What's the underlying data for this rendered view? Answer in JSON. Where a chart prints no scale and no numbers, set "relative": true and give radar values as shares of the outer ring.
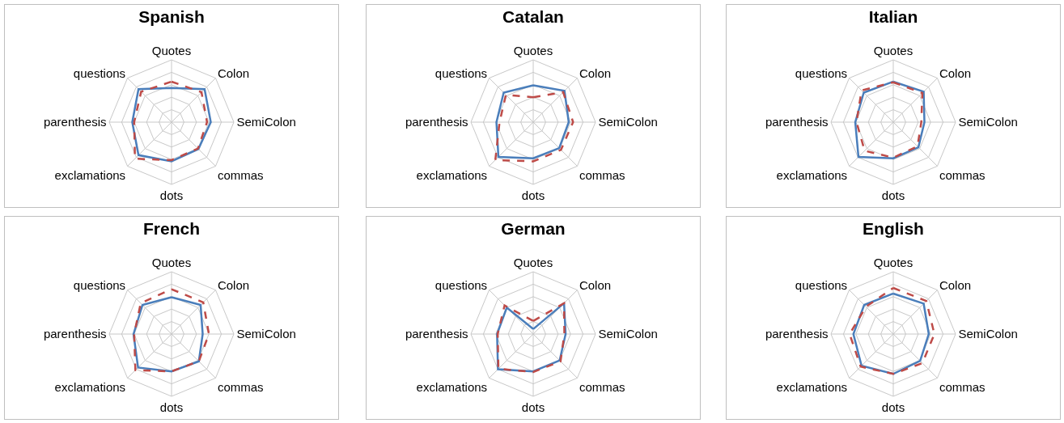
{
  "chart_data": [
    {
      "type": "radar",
      "title": "Spanish",
      "relative": true,
      "grid": true,
      "categories": [
        "Quotes",
        "Colon",
        "SemiColon",
        "commas",
        "dots",
        "exclamations",
        "parenthesis",
        "questions"
      ],
      "series": [
        {
          "color": "#4a7ebb",
          "line_style": "solid",
          "values": [
            0.55,
            0.75,
            0.63,
            0.61,
            0.63,
            0.75,
            0.63,
            0.75
          ]
        },
        {
          "color": "#be4b48",
          "line_style": "dashed",
          "values": [
            0.65,
            0.68,
            0.57,
            0.6,
            0.61,
            0.83,
            0.6,
            0.69
          ]
        }
      ]
    },
    {
      "type": "radar",
      "title": "Catalan",
      "relative": true,
      "grid": true,
      "categories": [
        "Quotes",
        "Colon",
        "SemiColon",
        "commas",
        "dots",
        "exclamations",
        "parenthesis",
        "questions"
      ],
      "series": [
        {
          "color": "#4a7ebb",
          "line_style": "solid",
          "values": [
            0.59,
            0.71,
            0.57,
            0.59,
            0.58,
            0.79,
            0.59,
            0.67
          ]
        },
        {
          "color": "#be4b48",
          "line_style": "dashed",
          "values": [
            0.4,
            0.68,
            0.64,
            0.63,
            0.63,
            0.86,
            0.54,
            0.62
          ]
        }
      ]
    },
    {
      "type": "radar",
      "title": "Italian",
      "relative": true,
      "grid": true,
      "categories": [
        "Quotes",
        "Colon",
        "SemiColon",
        "commas",
        "dots",
        "exclamations",
        "parenthesis",
        "questions"
      ],
      "series": [
        {
          "color": "#4a7ebb",
          "line_style": "solid",
          "values": [
            0.65,
            0.69,
            0.5,
            0.57,
            0.58,
            0.79,
            0.61,
            0.67
          ]
        },
        {
          "color": "#be4b48",
          "line_style": "dashed",
          "values": [
            0.64,
            0.66,
            0.45,
            0.55,
            0.57,
            0.65,
            0.59,
            0.72
          ]
        }
      ]
    },
    {
      "type": "radar",
      "title": "French",
      "relative": true,
      "grid": true,
      "categories": [
        "Quotes",
        "Colon",
        "SemiColon",
        "commas",
        "dots",
        "exclamations",
        "parenthesis",
        "questions"
      ],
      "series": [
        {
          "color": "#4a7ebb",
          "line_style": "solid",
          "values": [
            0.59,
            0.66,
            0.5,
            0.62,
            0.6,
            0.76,
            0.61,
            0.66
          ]
        },
        {
          "color": "#be4b48",
          "line_style": "dashed",
          "values": [
            0.72,
            0.72,
            0.6,
            0.62,
            0.6,
            0.82,
            0.6,
            0.7
          ]
        }
      ]
    },
    {
      "type": "radar",
      "title": "German",
      "relative": true,
      "grid": true,
      "categories": [
        "Quotes",
        "Colon",
        "SemiColon",
        "commas",
        "dots",
        "exclamations",
        "parenthesis",
        "questions"
      ],
      "series": [
        {
          "color": "#4a7ebb",
          "line_style": "solid",
          "values": [
            0.08,
            0.7,
            0.52,
            0.6,
            0.6,
            0.8,
            0.58,
            0.6
          ]
        },
        {
          "color": "#be4b48",
          "line_style": "dashed",
          "values": [
            0.21,
            0.7,
            0.5,
            0.62,
            0.61,
            0.79,
            0.57,
            0.65
          ]
        }
      ]
    },
    {
      "type": "radar",
      "title": "English",
      "relative": true,
      "grid": true,
      "categories": [
        "Quotes",
        "Colon",
        "SemiColon",
        "commas",
        "dots",
        "exclamations",
        "parenthesis",
        "questions"
      ],
      "series": [
        {
          "color": "#4a7ebb",
          "line_style": "solid",
          "values": [
            0.65,
            0.69,
            0.57,
            0.61,
            0.64,
            0.72,
            0.64,
            0.66
          ]
        },
        {
          "color": "#be4b48",
          "line_style": "dashed",
          "values": [
            0.74,
            0.75,
            0.66,
            0.66,
            0.64,
            0.74,
            0.7,
            0.62
          ]
        }
      ]
    }
  ]
}
